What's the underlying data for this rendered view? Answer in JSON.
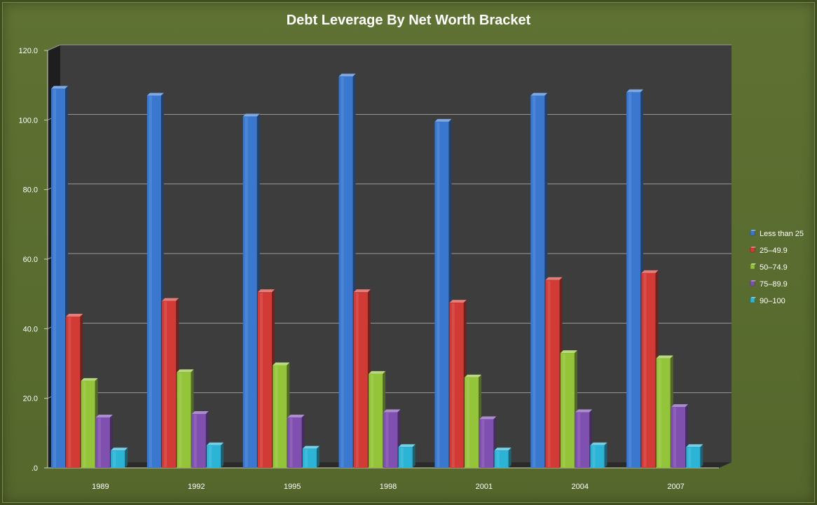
{
  "chart_data": {
    "type": "bar",
    "title": "Debt Leverage By Net Worth Bracket",
    "xlabel": "",
    "ylabel": "",
    "categories": [
      "1989",
      "1992",
      "1995",
      "1998",
      "2001",
      "2004",
      "2007"
    ],
    "ylim": [
      0,
      120
    ],
    "yticks": [
      "120.0",
      "100.0",
      "80.0",
      "60.0",
      "40.0",
      "20.0",
      ".0"
    ],
    "ytick_values": [
      120,
      100,
      80,
      60,
      40,
      20,
      0
    ],
    "grid": true,
    "legend_position": "right",
    "series": [
      {
        "name": "Less than 25",
        "color": "#3a78d0",
        "values": [
          109.0,
          107.0,
          101.0,
          112.5,
          99.5,
          107.0,
          108.0
        ]
      },
      {
        "name": "25–49.9",
        "color": "#d23a35",
        "values": [
          43.5,
          48.0,
          50.5,
          50.5,
          47.5,
          54.0,
          56.0
        ]
      },
      {
        "name": "50–74.9",
        "color": "#94c43a",
        "values": [
          25.0,
          27.5,
          29.5,
          27.0,
          26.0,
          33.0,
          31.5
        ]
      },
      {
        "name": "75–89.9",
        "color": "#8050b0",
        "values": [
          14.5,
          15.5,
          14.5,
          16.0,
          14.0,
          16.0,
          17.5
        ]
      },
      {
        "name": "90–100",
        "color": "#2cb4d6",
        "values": [
          5.0,
          6.5,
          5.5,
          6.0,
          5.0,
          6.5,
          6.0
        ]
      }
    ]
  }
}
